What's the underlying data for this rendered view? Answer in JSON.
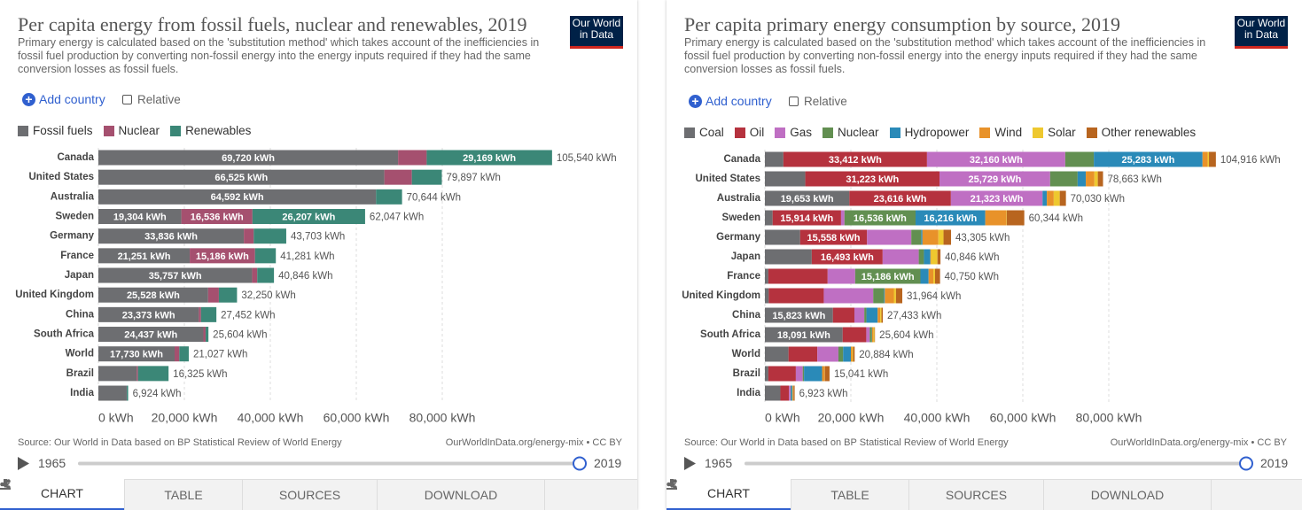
{
  "chart_data": [
    {
      "type": "bar",
      "stacked": true,
      "title": "Per capita energy from fossil fuels, nuclear and renewables, 2019",
      "subtitle": "Primary energy is calculated based on the 'substitution method' which takes account of the inefficiencies in fossil fuel production by converting non-fossil energy into the energy inputs required if they had the same conversion losses as fossil fuels.",
      "categories": [
        "Canada",
        "United States",
        "Australia",
        "Sweden",
        "Germany",
        "France",
        "Japan",
        "United Kingdom",
        "China",
        "South Africa",
        "World",
        "Brazil",
        "India"
      ],
      "series": [
        {
          "name": "Fossil fuels",
          "color": "#6d6e71",
          "values": [
            69720,
            66525,
            64592,
            19304,
            33836,
            21251,
            35757,
            25528,
            23373,
            24437,
            17730,
            8900,
            6400
          ],
          "value_labels": [
            "69,720 kWh",
            "66,525 kWh",
            "64,592 kWh",
            "19,304 kWh",
            "33,836 kWh",
            "21,251 kWh",
            "35,757 kWh",
            "25,528 kWh",
            "23,373 kWh",
            "24,437 kWh",
            "17,730 kWh",
            null,
            null
          ]
        },
        {
          "name": "Nuclear",
          "color": "#a5506f",
          "values": [
            6651,
            6400,
            0,
            16536,
            2300,
            15186,
            1200,
            2500,
            500,
            500,
            1100,
            300,
            100
          ],
          "value_labels": [
            null,
            null,
            null,
            "16,536 kWh",
            null,
            "15,186 kWh",
            null,
            null,
            null,
            null,
            null,
            null,
            null
          ]
        },
        {
          "name": "Renewables",
          "color": "#3b8777",
          "values": [
            29169,
            6972,
            6052,
            26207,
            7567,
            4844,
            3889,
            4222,
            3579,
            667,
            2197,
            7125,
            424
          ],
          "value_labels": [
            "29,169 kWh",
            null,
            null,
            "26,207 kWh",
            null,
            null,
            null,
            null,
            null,
            null,
            null,
            null,
            null
          ]
        }
      ],
      "totals": [
        105540,
        79897,
        70644,
        62047,
        43703,
        41281,
        40846,
        32250,
        27452,
        25604,
        21027,
        16325,
        6924
      ],
      "total_labels": [
        "105,540 kWh",
        "79,897 kWh",
        "70,644 kWh",
        "62,047 kWh",
        "43,703 kWh",
        "41,281 kWh",
        "40,846 kWh",
        "32,250 kWh",
        "27,452 kWh",
        "25,604 kWh",
        "21,027 kWh",
        "16,325 kWh",
        "6,924 kWh"
      ],
      "xlim": [
        0,
        100000
      ],
      "xticks": [
        {
          "value": 0,
          "label": "0 kWh"
        },
        {
          "value": 20000,
          "label": "20,000 kWh"
        },
        {
          "value": 40000,
          "label": "40,000 kWh"
        },
        {
          "value": 60000,
          "label": "60,000 kWh"
        },
        {
          "value": 80000,
          "label": "80,000 kWh"
        }
      ],
      "grid": true
    },
    {
      "type": "bar",
      "stacked": true,
      "title": "Per capita primary energy consumption by source, 2019",
      "subtitle": "Primary energy is calculated based on the 'substitution method' which takes account of the inefficiencies in fossil fuel production by converting non-fossil energy into the energy inputs required if they had the same conversion losses as fossil fuels.",
      "categories": [
        "Canada",
        "United States",
        "Australia",
        "Sweden",
        "Germany",
        "Japan",
        "France",
        "United Kingdom",
        "China",
        "South Africa",
        "World",
        "Brazil",
        "India"
      ],
      "series": [
        {
          "name": "Coal",
          "color": "#6d6e71",
          "values": [
            4300,
            9400,
            19653,
            1800,
            8200,
            10900,
            800,
            900,
            15823,
            18091,
            5500,
            800,
            3600
          ],
          "value_labels": [
            null,
            null,
            "19,653 kWh",
            null,
            null,
            null,
            null,
            null,
            "15,823 kWh",
            "18,091 kWh",
            null,
            null,
            null
          ]
        },
        {
          "name": "Oil",
          "color": "#b5323e",
          "values": [
            33412,
            31223,
            23616,
            15914,
            15558,
            16493,
            13800,
            12800,
            5000,
            5500,
            6700,
            6400,
            2000
          ],
          "value_labels": [
            "33,412 kWh",
            "31,223 kWh",
            "23,616 kWh",
            "15,914 kWh",
            "15,558 kWh",
            "16,493 kWh",
            null,
            null,
            null,
            null,
            null,
            null,
            null
          ]
        },
        {
          "name": "Gas",
          "color": "#bf6fc3",
          "values": [
            32160,
            25729,
            21323,
            800,
            10300,
            8400,
            6400,
            11500,
            2300,
            800,
            4900,
            1600,
            400
          ],
          "value_labels": [
            "32,160 kWh",
            "25,729 kWh",
            "21,323 kWh",
            null,
            null,
            null,
            null,
            null,
            null,
            null,
            null,
            null,
            null
          ]
        },
        {
          "name": "Nuclear",
          "color": "#628f51",
          "values": [
            6650,
            6400,
            0,
            16536,
            2300,
            1200,
            15186,
            2500,
            500,
            500,
            1100,
            300,
            100
          ],
          "value_labels": [
            null,
            null,
            null,
            "16,536 kWh",
            null,
            null,
            "15,186 kWh",
            null,
            null,
            null,
            null,
            null,
            null
          ]
        },
        {
          "name": "Hydropower",
          "color": "#2a8ab8",
          "values": [
            25283,
            1900,
            1000,
            16216,
            300,
            1500,
            1900,
            200,
            2600,
            50,
            1800,
            4200,
            300
          ],
          "value_labels": [
            "25,283 kWh",
            null,
            null,
            "16,216 kWh",
            null,
            null,
            null,
            null,
            null,
            null,
            null,
            null,
            null
          ]
        },
        {
          "name": "Wind",
          "color": "#e8922a",
          "values": [
            1200,
            2000,
            1600,
            4900,
            3700,
            150,
            1100,
            2100,
            600,
            300,
            300,
            600,
            150
          ],
          "value_labels": [
            null,
            null,
            null,
            null,
            null,
            null,
            null,
            null,
            null,
            null,
            null,
            null,
            null
          ]
        },
        {
          "name": "Solar",
          "color": "#eec82f",
          "values": [
            300,
            800,
            1400,
            100,
            1200,
            1500,
            400,
            500,
            300,
            250,
            200,
            50,
            100
          ],
          "value_labels": [
            null,
            null,
            null,
            null,
            null,
            null,
            null,
            null,
            null,
            null,
            null,
            null,
            null
          ]
        },
        {
          "name": "Other renewables",
          "color": "#b8651f",
          "values": [
            1611,
            1211,
            1438,
            4078,
            1747,
            703,
            1164,
            1464,
            310,
            113,
            384,
            1091,
            273
          ],
          "value_labels": [
            null,
            null,
            null,
            null,
            null,
            null,
            null,
            null,
            null,
            null,
            null,
            null,
            null
          ]
        }
      ],
      "totals": [
        104916,
        78663,
        70030,
        60344,
        43305,
        40846,
        40750,
        31964,
        27433,
        25604,
        20884,
        15041,
        6923
      ],
      "total_labels": [
        "104,916 kWh",
        "78,663 kWh",
        "70,030 kWh",
        "60,344 kWh",
        "43,305 kWh",
        "40,846 kWh",
        "40,750 kWh",
        "31,964 kWh",
        "27,433 kWh",
        "25,604 kWh",
        "20,884 kWh",
        "15,041 kWh",
        "6,923 kWh"
      ],
      "xlim": [
        0,
        100000
      ],
      "xticks": [
        {
          "value": 0,
          "label": "0 kWh"
        },
        {
          "value": 20000,
          "label": "20,000 kWh"
        },
        {
          "value": 40000,
          "label": "40,000 kWh"
        },
        {
          "value": 60000,
          "label": "60,000 kWh"
        },
        {
          "value": 80000,
          "label": "80,000 kWh"
        }
      ],
      "grid": true
    }
  ],
  "panels": [
    {
      "logo": [
        "Our World",
        "in Data"
      ],
      "add_country": "Add country",
      "relative": "Relative",
      "source": "Source: Our World in Data based on BP Statistical Review of World Energy",
      "link": "OurWorldInData.org/energy-mix • CC BY",
      "timeline": {
        "start": 1965,
        "end": 2019
      },
      "tabs": [
        "CHART",
        "TABLE",
        "SOURCES",
        "DOWNLOAD"
      ]
    },
    {
      "logo": [
        "Our World",
        "in Data"
      ],
      "add_country": "Add country",
      "relative": "Relative",
      "source": "Source: Our World in Data based on BP Statistical Review of World Energy",
      "link": "OurWorldInData.org/energy-mix • CC BY",
      "timeline": {
        "start": 1965,
        "end": 2019
      },
      "tabs": [
        "CHART",
        "TABLE",
        "SOURCES",
        "DOWNLOAD"
      ]
    }
  ]
}
